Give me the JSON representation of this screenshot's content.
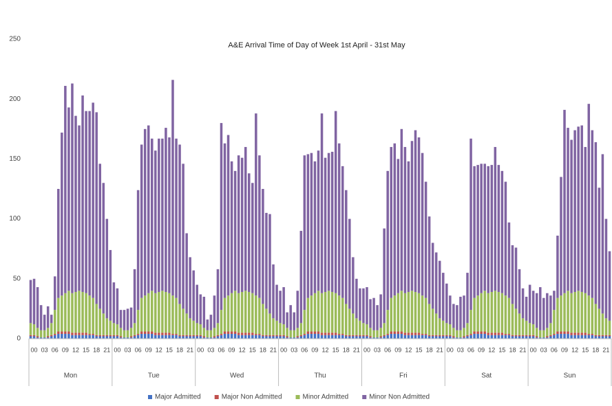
{
  "chart_data": {
    "type": "stacked_bar",
    "title": "A&E Arrival Time of Day of Week 1st April - 31st May",
    "ylim": [
      0,
      250
    ],
    "yticks": [
      0,
      50,
      100,
      150,
      200,
      250
    ],
    "groups": [
      "Mon",
      "Tue",
      "Wed",
      "Thu",
      "Fri",
      "Sat",
      "Sun"
    ],
    "categories": [
      "00",
      null,
      null,
      "03",
      null,
      null,
      "06",
      null,
      null,
      "09",
      null,
      null,
      "12",
      null,
      null,
      "15",
      null,
      null,
      "18",
      null,
      null,
      "21",
      null,
      null,
      "00",
      null,
      null,
      "03",
      null,
      null,
      "06",
      null,
      null,
      "09",
      null,
      null,
      "12",
      null,
      null,
      "15",
      null,
      null,
      "18",
      null,
      null,
      "21",
      null,
      null,
      "00",
      null,
      null,
      "03",
      null,
      null,
      "06",
      null,
      null,
      "09",
      null,
      null,
      "12",
      null,
      null,
      "15",
      null,
      null,
      "18",
      null,
      null,
      "21",
      null,
      null,
      "00",
      null,
      null,
      "03",
      null,
      null,
      "06",
      null,
      null,
      "09",
      null,
      null,
      "12",
      null,
      null,
      "15",
      null,
      null,
      "18",
      null,
      null,
      "21",
      null,
      null,
      "00",
      null,
      null,
      "03",
      null,
      null,
      "06",
      null,
      null,
      "09",
      null,
      null,
      "12",
      null,
      null,
      "15",
      null,
      null,
      "18",
      null,
      null,
      "21",
      null,
      null,
      "00",
      null,
      null,
      "03",
      null,
      null,
      "06",
      null,
      null,
      "09",
      null,
      null,
      "12",
      null,
      null,
      "15",
      null,
      null,
      "18",
      null,
      null,
      "21",
      null,
      null,
      "00",
      null,
      null,
      "03",
      null,
      null,
      "06",
      null,
      null,
      "09",
      null,
      null,
      "12",
      null,
      null,
      "15",
      null,
      null,
      "18",
      null,
      null,
      "21",
      null,
      null
    ],
    "series": [
      {
        "name": "Major Admitted",
        "color": "#4472c4",
        "values": [
          2,
          2,
          1,
          1,
          1,
          1,
          2,
          3,
          4,
          4,
          4,
          4,
          3,
          3,
          3,
          3,
          3,
          3,
          3,
          2,
          2,
          2,
          2,
          2,
          2,
          2,
          1,
          1,
          1,
          1,
          2,
          3,
          4,
          4,
          4,
          4,
          3,
          3,
          3,
          3,
          3,
          3,
          3,
          2,
          2,
          2,
          2,
          2,
          2,
          2,
          1,
          1,
          1,
          1,
          2,
          3,
          4,
          4,
          4,
          4,
          3,
          3,
          3,
          3,
          3,
          3,
          3,
          2,
          2,
          2,
          2,
          2,
          2,
          2,
          1,
          1,
          1,
          1,
          2,
          3,
          4,
          4,
          4,
          4,
          3,
          3,
          3,
          3,
          3,
          3,
          3,
          2,
          2,
          2,
          2,
          2,
          2,
          2,
          1,
          1,
          1,
          1,
          2,
          3,
          4,
          4,
          4,
          4,
          3,
          3,
          3,
          3,
          3,
          3,
          3,
          2,
          2,
          2,
          2,
          2,
          2,
          2,
          1,
          1,
          1,
          1,
          2,
          3,
          4,
          4,
          4,
          4,
          3,
          3,
          3,
          3,
          3,
          3,
          3,
          2,
          2,
          2,
          2,
          2,
          2,
          2,
          1,
          1,
          1,
          1,
          2,
          3,
          4,
          4,
          4,
          4,
          3,
          3,
          3,
          3,
          3,
          3,
          3,
          2,
          2,
          2,
          2,
          2
        ]
      },
      {
        "name": "Major Non Admitted",
        "color": "#c0504d",
        "values": [
          1,
          1,
          1,
          0,
          0,
          1,
          1,
          1,
          2,
          2,
          2,
          2,
          2,
          2,
          2,
          2,
          2,
          1,
          1,
          1,
          1,
          1,
          1,
          1,
          1,
          1,
          1,
          0,
          0,
          1,
          1,
          1,
          2,
          2,
          2,
          2,
          2,
          2,
          2,
          2,
          2,
          1,
          1,
          1,
          1,
          1,
          1,
          1,
          1,
          1,
          1,
          0,
          0,
          1,
          1,
          1,
          2,
          2,
          2,
          2,
          2,
          2,
          2,
          2,
          2,
          1,
          1,
          1,
          1,
          1,
          1,
          1,
          1,
          1,
          1,
          0,
          0,
          1,
          1,
          1,
          2,
          2,
          2,
          2,
          2,
          2,
          2,
          2,
          2,
          1,
          1,
          1,
          1,
          1,
          1,
          1,
          1,
          1,
          1,
          0,
          0,
          1,
          1,
          1,
          2,
          2,
          2,
          2,
          2,
          2,
          2,
          2,
          2,
          1,
          1,
          1,
          1,
          1,
          1,
          1,
          1,
          1,
          1,
          0,
          0,
          1,
          1,
          1,
          2,
          2,
          2,
          2,
          2,
          2,
          2,
          2,
          2,
          1,
          1,
          1,
          1,
          1,
          1,
          1,
          1,
          1,
          1,
          0,
          0,
          1,
          1,
          1,
          2,
          2,
          2,
          2,
          2,
          2,
          2,
          2,
          2,
          1,
          1,
          1,
          1,
          1,
          1,
          1
        ]
      },
      {
        "name": "Minor Admitted",
        "color": "#9bbb59",
        "values": [
          10,
          9,
          7,
          6,
          6,
          7,
          10,
          20,
          28,
          30,
          32,
          34,
          33,
          34,
          35,
          34,
          33,
          32,
          30,
          26,
          22,
          18,
          14,
          12,
          10,
          9,
          7,
          6,
          6,
          7,
          10,
          20,
          28,
          30,
          32,
          34,
          33,
          34,
          35,
          34,
          33,
          32,
          30,
          26,
          22,
          18,
          14,
          12,
          10,
          9,
          7,
          6,
          6,
          7,
          10,
          20,
          28,
          30,
          32,
          34,
          33,
          34,
          35,
          34,
          33,
          32,
          30,
          26,
          22,
          18,
          14,
          12,
          10,
          9,
          7,
          6,
          6,
          7,
          10,
          20,
          28,
          30,
          32,
          34,
          33,
          34,
          35,
          34,
          33,
          32,
          30,
          26,
          22,
          18,
          14,
          12,
          10,
          9,
          7,
          6,
          6,
          7,
          10,
          20,
          28,
          30,
          32,
          34,
          33,
          34,
          35,
          34,
          33,
          32,
          30,
          26,
          22,
          18,
          14,
          12,
          10,
          9,
          7,
          6,
          6,
          7,
          10,
          20,
          28,
          30,
          32,
          34,
          33,
          34,
          35,
          34,
          33,
          32,
          30,
          26,
          22,
          18,
          14,
          12,
          10,
          9,
          7,
          6,
          6,
          7,
          10,
          20,
          28,
          30,
          32,
          34,
          33,
          34,
          35,
          34,
          33,
          32,
          30,
          26,
          22,
          18,
          14,
          12
        ]
      },
      {
        "name": "Minor Non Admitted",
        "color": "#8064a2",
        "values": [
          36,
          38,
          34,
          21,
          13,
          18,
          7,
          28,
          91,
          136,
          173,
          153,
          175,
          147,
          138,
          164,
          152,
          154,
          163,
          160,
          121,
          109,
          83,
          59,
          34,
          30,
          15,
          17,
          18,
          17,
          45,
          100,
          128,
          139,
          140,
          127,
          119,
          128,
          127,
          137,
          130,
          180,
          133,
          133,
          121,
          67,
          51,
          42,
          32,
          25,
          26,
          9,
          13,
          27,
          45,
          156,
          129,
          134,
          110,
          100,
          115,
          112,
          120,
          99,
          92,
          152,
          119,
          96,
          80,
          83,
          45,
          30,
          27,
          31,
          13,
          21,
          15,
          31,
          77,
          129,
          120,
          119,
          110,
          117,
          150,
          112,
          115,
          117,
          152,
          127,
          110,
          95,
          75,
          47,
          33,
          27,
          29,
          31,
          24,
          27,
          21,
          28,
          79,
          116,
          126,
          127,
          112,
          135,
          122,
          109,
          125,
          135,
          130,
          119,
          97,
          73,
          55,
          51,
          48,
          40,
          33,
          24,
          20,
          21,
          28,
          27,
          42,
          143,
          110,
          109,
          108,
          106,
          106,
          106,
          120,
          106,
          102,
          95,
          63,
          49,
          51,
          37,
          25,
          20,
          32,
          28,
          29,
          36,
          27,
          29,
          23,
          16,
          52,
          99,
          153,
          136,
          128,
          135,
          137,
          139,
          122,
          160,
          140,
          135,
          101,
          133,
          83,
          58
        ]
      }
    ],
    "legend": "bottom"
  }
}
